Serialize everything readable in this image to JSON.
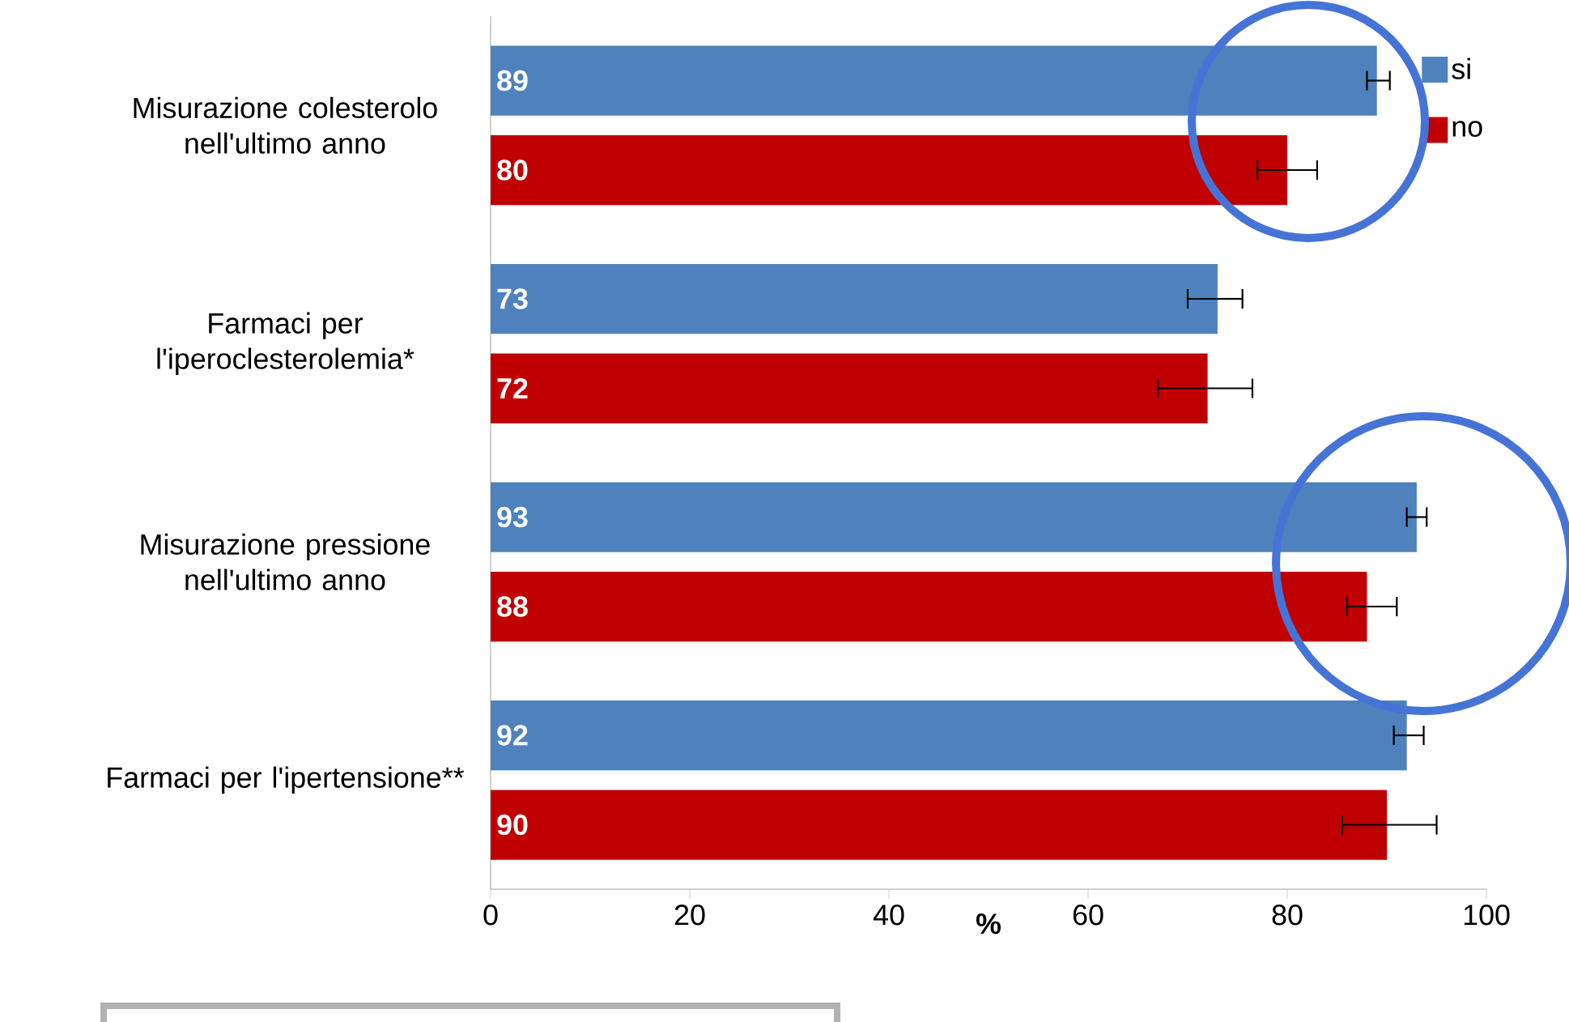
{
  "chart_data": {
    "type": "bar",
    "orientation": "horizontal",
    "categories": [
      "Misurazione colesterolo nell'ultimo anno",
      "Farmaci per l'iperoclesterolemia*",
      "Misurazione pressione nell'ultimo anno",
      "Farmaci per l'ipertensione**"
    ],
    "series": [
      {
        "name": "si",
        "color": "#4f81bd",
        "values": [
          89,
          73,
          93,
          92
        ],
        "errors": [
          [
            88,
            90.3
          ],
          [
            70,
            75.5
          ],
          [
            92,
            94
          ],
          [
            90.7,
            93.7
          ]
        ]
      },
      {
        "name": "no",
        "color": "#c00000",
        "values": [
          80,
          72,
          88,
          90
        ],
        "errors": [
          [
            77,
            83
          ],
          [
            67,
            76.5
          ],
          [
            86,
            91
          ],
          [
            85.5,
            95
          ]
        ]
      }
    ],
    "xlabel": "%",
    "xlim": [
      0,
      100
    ],
    "xticks": [
      0,
      20,
      40,
      60,
      80,
      100
    ],
    "data_labels": true,
    "legend": "top right"
  }
}
